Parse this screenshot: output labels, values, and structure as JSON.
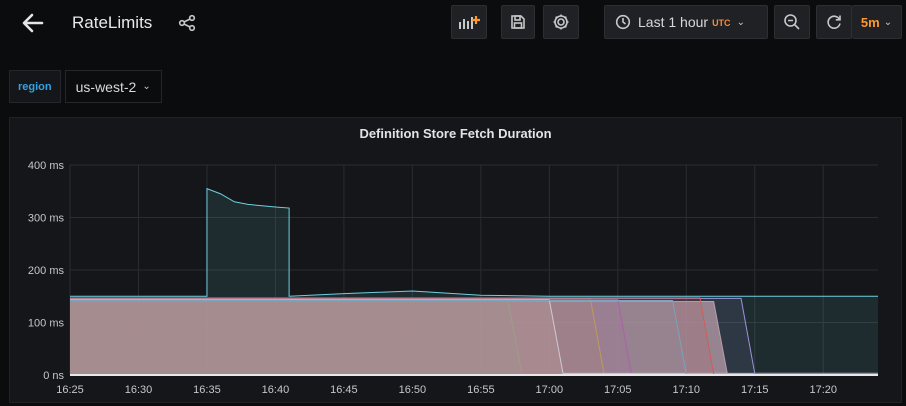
{
  "header": {
    "title": "RateLimits",
    "time_range_label": "Last 1 hour",
    "timezone_label": "UTC",
    "refresh_interval": "5m",
    "icons": {
      "back": "arrow-left-icon",
      "share": "share-icon",
      "add_panel": "add-panel-icon",
      "save": "save-icon",
      "settings": "gear-icon",
      "clock": "clock-icon",
      "zoom_out": "zoom-out-icon",
      "refresh": "refresh-icon"
    }
  },
  "variables": {
    "region_label": "region",
    "region_value": "us-west-2"
  },
  "panel": {
    "title": "Definition Store Fetch Duration"
  },
  "chart_data": {
    "type": "area",
    "title": "Definition Store Fetch Duration",
    "xlabel": "",
    "ylabel": "",
    "x_ticks": [
      "16:25",
      "16:30",
      "16:35",
      "16:40",
      "16:45",
      "16:50",
      "16:55",
      "17:00",
      "17:05",
      "17:10",
      "17:15",
      "17:20"
    ],
    "y_ticks": [
      "0 ns",
      "100 ms",
      "200 ms",
      "300 ms",
      "400 ms"
    ],
    "ylim": [
      0,
      400
    ],
    "xlim": [
      "16:25",
      "17:24"
    ],
    "grid": true,
    "legend": "none",
    "series": [
      {
        "color": "#c99a9d",
        "x": [
          "16:25",
          "16:56",
          "16:57",
          "17:12",
          "17:13",
          "17:24"
        ],
        "y": [
          142,
          142,
          140,
          140,
          2,
          2
        ]
      },
      {
        "color": "#7eb26d",
        "x": [
          "16:25",
          "16:57",
          "16:58",
          "17:24"
        ],
        "y": [
          140,
          140,
          2,
          2
        ]
      },
      {
        "color": "#e0752d",
        "x": [
          "16:25",
          "17:00",
          "17:01",
          "17:24"
        ],
        "y": [
          141,
          141,
          2,
          2
        ]
      },
      {
        "color": "#e5ac0e",
        "x": [
          "16:25",
          "17:03",
          "17:04",
          "17:24"
        ],
        "y": [
          145,
          145,
          2,
          2
        ]
      },
      {
        "color": "#ba43a9",
        "x": [
          "16:25",
          "17:05",
          "17:06",
          "17:24"
        ],
        "y": [
          144,
          144,
          2,
          2
        ]
      },
      {
        "color": "#f2f2f2",
        "x": [
          "16:25",
          "17:00",
          "17:01",
          "17:24"
        ],
        "y": [
          143,
          143,
          3,
          3
        ]
      },
      {
        "color": "#64b0c8",
        "x": [
          "16:25",
          "17:09",
          "17:10",
          "17:24"
        ],
        "y": [
          142,
          142,
          2,
          2
        ]
      },
      {
        "color": "#a68bd6",
        "x": [
          "16:25",
          "17:14",
          "17:15",
          "17:24"
        ],
        "y": [
          146,
          146,
          3,
          3
        ]
      },
      {
        "color": "#e24d42",
        "x": [
          "16:25",
          "17:11",
          "17:12",
          "17:24"
        ],
        "y": [
          147,
          147,
          2,
          2
        ]
      },
      {
        "color": "#6ed0e0",
        "x": [
          "16:25",
          "16:35",
          "16:35",
          "16:36",
          "16:37",
          "16:38",
          "16:40",
          "16:41",
          "16:41",
          "16:45",
          "16:50",
          "16:55",
          "17:00",
          "17:24"
        ],
        "y": [
          150,
          150,
          355,
          345,
          330,
          325,
          320,
          318,
          150,
          155,
          160,
          152,
          150,
          150
        ]
      }
    ]
  }
}
